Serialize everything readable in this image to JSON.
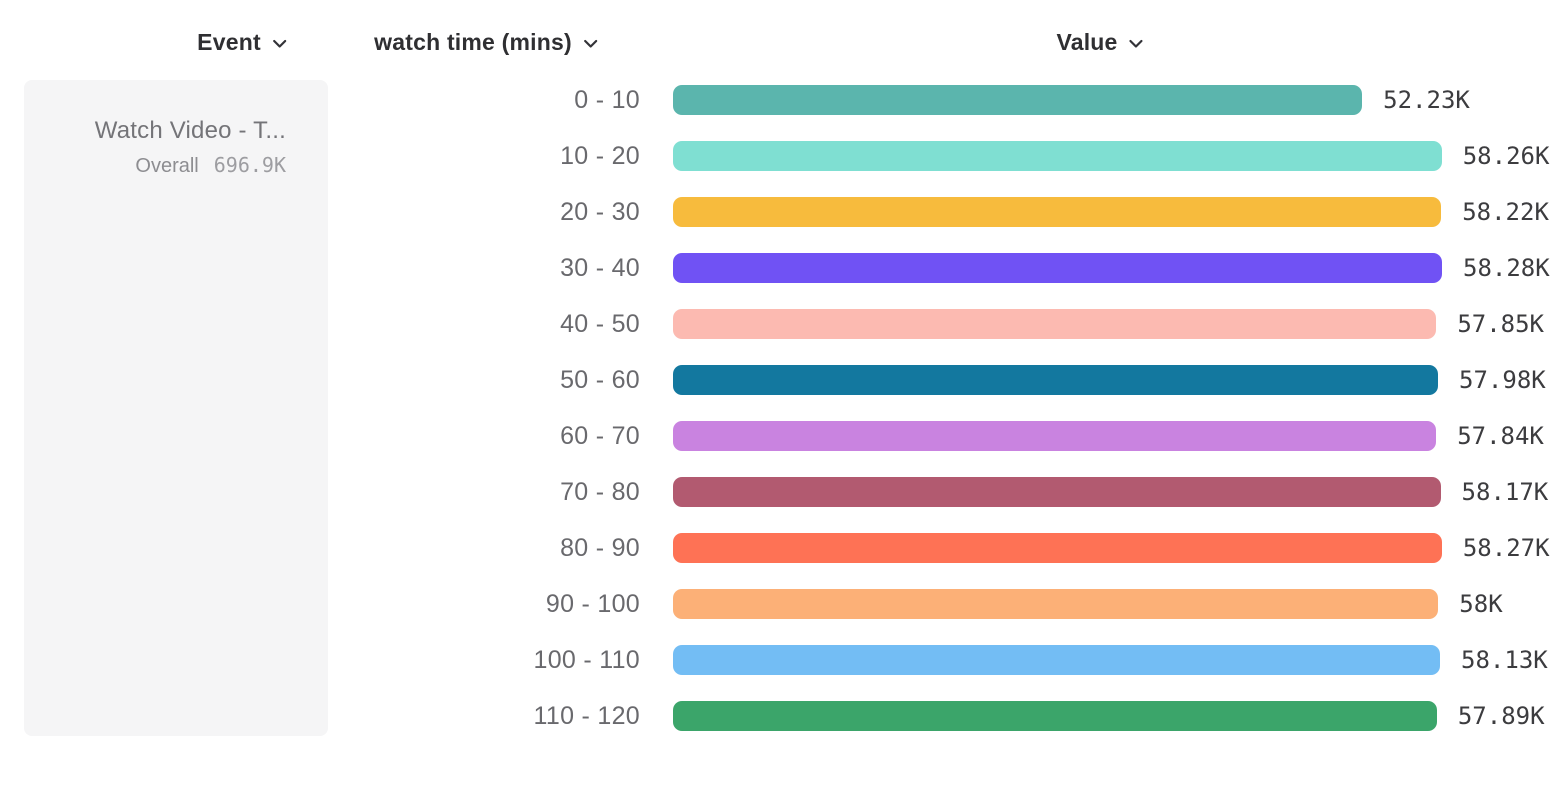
{
  "header": {
    "columns": [
      {
        "label": "Event"
      },
      {
        "label": "watch time (mins)"
      },
      {
        "label": "Value"
      }
    ]
  },
  "event_card": {
    "title": "Watch Video - T...",
    "overall_label": "Overall",
    "overall_value": "696.9K"
  },
  "chart_data": {
    "type": "bar",
    "orientation": "horizontal",
    "title": "",
    "xlabel": "Value",
    "ylabel": "watch time (mins)",
    "legend": false,
    "grid": false,
    "xlim": [
      0,
      58280
    ],
    "categories": [
      "0 - 10",
      "10 - 20",
      "20 - 30",
      "30 - 40",
      "40 - 50",
      "50 - 60",
      "60 - 70",
      "70 - 80",
      "80 - 90",
      "90 - 100",
      "100 - 110",
      "110 - 120"
    ],
    "values": [
      52230,
      58260,
      58220,
      58280,
      57850,
      57980,
      57840,
      58170,
      58270,
      58000,
      58130,
      57890
    ],
    "value_labels": [
      "52.23K",
      "58.26K",
      "58.22K",
      "58.28K",
      "57.85K",
      "57.98K",
      "57.84K",
      "58.17K",
      "58.27K",
      "58K",
      "58.13K",
      "57.89K"
    ],
    "colors": [
      "#5bb5ad",
      "#7fdfd2",
      "#f7bb3d",
      "#7052f4",
      "#fcbab1",
      "#13789f",
      "#c983e0",
      "#b25a70",
      "#fe7255",
      "#fcb077",
      "#73bdf4",
      "#3ba56a"
    ],
    "series_name": "Watch Video - T...",
    "overall_total": "696.9K"
  },
  "icons": {
    "chevron_down": "chevron-down"
  }
}
